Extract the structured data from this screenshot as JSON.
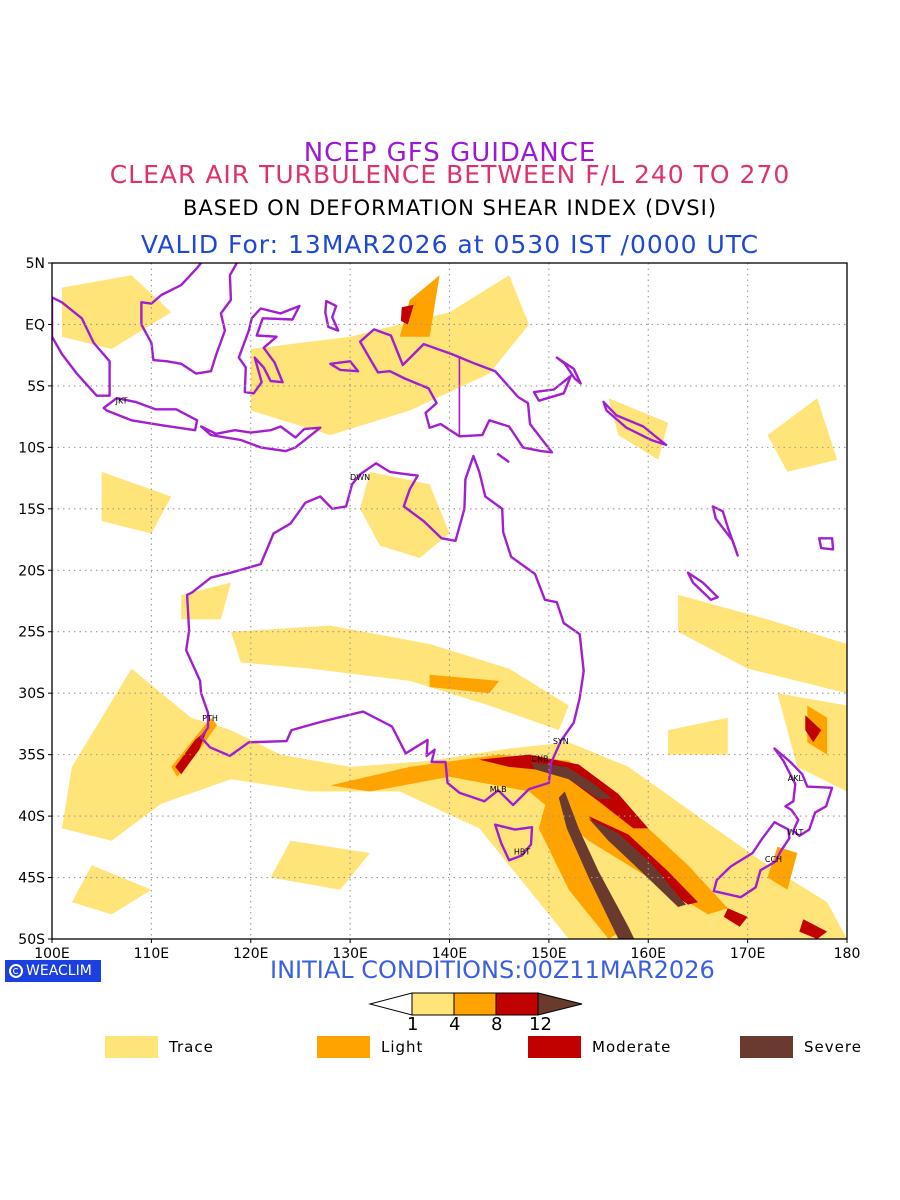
{
  "header": {
    "line1": "NCEP GFS GUIDANCE",
    "line2": "CLEAR AIR TURBULENCE BETWEEN F/L 240 TO 270",
    "line3": "BASED ON DEFORMATION SHEAR INDEX (DVSI)",
    "line4": "VALID For: 13MAR2026 at 0530 IST /0000 UTC"
  },
  "map": {
    "lat_labels": [
      "5N",
      "EQ",
      "5S",
      "10S",
      "15S",
      "20S",
      "25S",
      "30S",
      "35S",
      "40S",
      "45S",
      "50S"
    ],
    "lat_values": [
      5,
      0,
      -5,
      -10,
      -15,
      -20,
      -25,
      -30,
      -35,
      -40,
      -45,
      -50
    ],
    "lon_labels": [
      "100E",
      "110E",
      "120E",
      "130E",
      "140E",
      "150E",
      "160E",
      "170E",
      "180"
    ],
    "lon_values": [
      100,
      110,
      120,
      130,
      140,
      150,
      160,
      170,
      180
    ],
    "extent": {
      "lon_min": 100,
      "lon_max": 180,
      "lat_min": -50,
      "lat_max": 5
    },
    "stations": [
      {
        "code": "JKT",
        "lon": 107.0,
        "lat": -6.2
      },
      {
        "code": "DWN",
        "lon": 131.0,
        "lat": -12.4
      },
      {
        "code": "PTH",
        "lon": 115.9,
        "lat": -32.0
      },
      {
        "code": "SYN",
        "lon": 151.2,
        "lat": -33.9
      },
      {
        "code": "CNB",
        "lon": 149.1,
        "lat": -35.3
      },
      {
        "code": "MLB",
        "lon": 144.9,
        "lat": -37.8
      },
      {
        "code": "HBT",
        "lon": 147.3,
        "lat": -42.9
      },
      {
        "code": "AKL",
        "lon": 174.8,
        "lat": -36.9
      },
      {
        "code": "WLT",
        "lon": 174.8,
        "lat": -41.3
      },
      {
        "code": "CCH",
        "lon": 172.6,
        "lat": -43.5
      }
    ],
    "colors": {
      "trace": "#ffe47a",
      "light": "#ffa300",
      "moderate": "#c10000",
      "severe": "#6b3a2e",
      "coast": "#a21fd0",
      "grid": "#9a9a9a"
    }
  },
  "brand": {
    "label": "WEACLIM"
  },
  "footer": {
    "initial": "INITIAL CONDITIONS:00Z11MAR2026"
  },
  "colorbar": {
    "ticks": [
      "1",
      "4",
      "8",
      "12"
    ]
  },
  "legend": {
    "items": [
      {
        "label": "Trace",
        "color": "#ffe47a"
      },
      {
        "label": "Light",
        "color": "#ffa300"
      },
      {
        "label": "Moderate",
        "color": "#c10000"
      },
      {
        "label": "Severe",
        "color": "#6b3a2e"
      }
    ]
  }
}
